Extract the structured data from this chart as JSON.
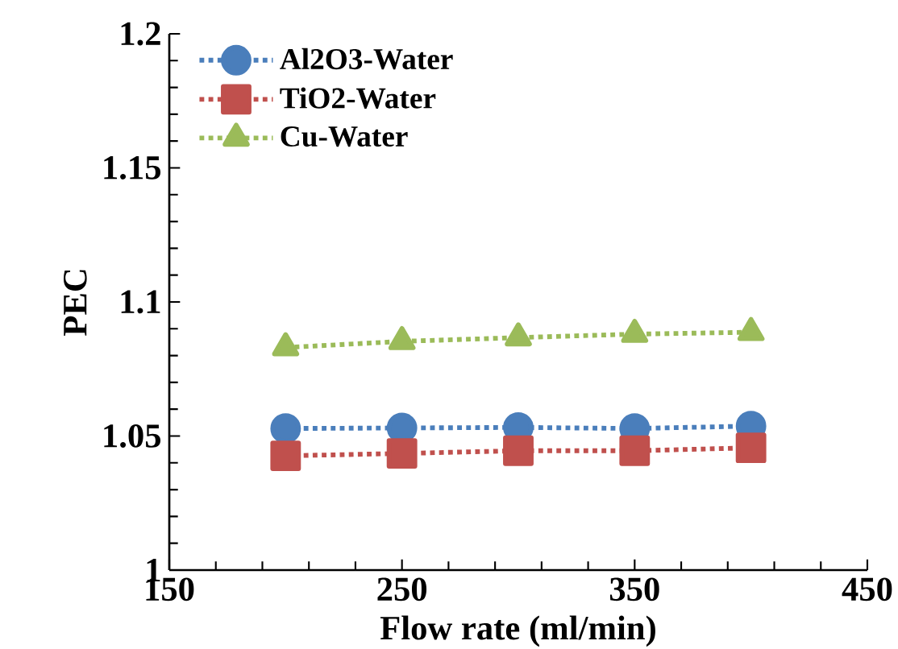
{
  "chart_data": {
    "type": "line",
    "xlabel": "Flow rate (ml/min)",
    "ylabel": "PEC",
    "x": [
      200,
      250,
      300,
      350,
      400
    ],
    "series": [
      {
        "name": "Al2O3-Water",
        "color": "#4a7ebb",
        "marker": "circle",
        "values": [
          1.0528,
          1.053,
          1.0532,
          1.0528,
          1.0537
        ]
      },
      {
        "name": "TiO2-Water",
        "color": "#c0504d",
        "marker": "square",
        "values": [
          1.0426,
          1.0435,
          1.0445,
          1.0445,
          1.0456
        ]
      },
      {
        "name": "Cu-Water",
        "color": "#9bbb59",
        "marker": "triangle",
        "values": [
          1.083,
          1.0853,
          1.0867,
          1.088,
          1.0887
        ]
      }
    ],
    "line_style": "dotted",
    "legend": "top left",
    "grid": false,
    "xlim": [
      150,
      450
    ],
    "xticks": [
      150,
      250,
      350,
      450
    ],
    "ylim": [
      1,
      1.2
    ],
    "yticks": [
      1,
      1.05,
      1.1,
      1.15,
      1.2
    ]
  }
}
